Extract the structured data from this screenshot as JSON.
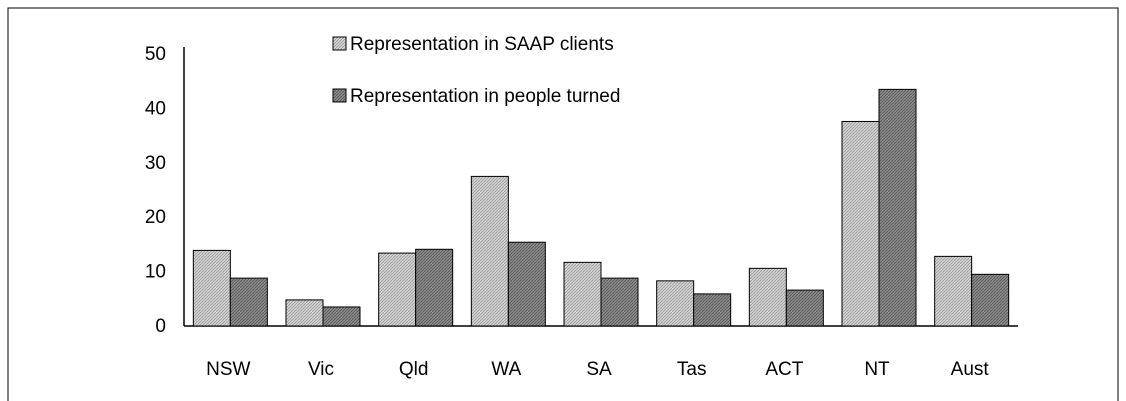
{
  "chart_data": {
    "type": "bar",
    "categories": [
      "NSW",
      "Vic",
      "Qld",
      "WA",
      "SA",
      "Tas",
      "ACT",
      "NT",
      "Aust"
    ],
    "series": [
      {
        "name": "Representation in SAAP clients",
        "color": "#d4d4d4",
        "values": [
          13.9,
          4.8,
          13.4,
          27.5,
          11.7,
          8.3,
          10.6,
          37.6,
          12.8
        ]
      },
      {
        "name": "Representation in people turned",
        "color": "#8c8c8c",
        "values": [
          8.8,
          3.5,
          14.1,
          15.4,
          8.8,
          5.9,
          6.6,
          43.5,
          9.5
        ]
      }
    ],
    "ylim": [
      0,
      50
    ],
    "yticks": [
      0,
      10,
      20,
      30,
      40,
      50
    ],
    "grid": false,
    "legend": "top"
  }
}
